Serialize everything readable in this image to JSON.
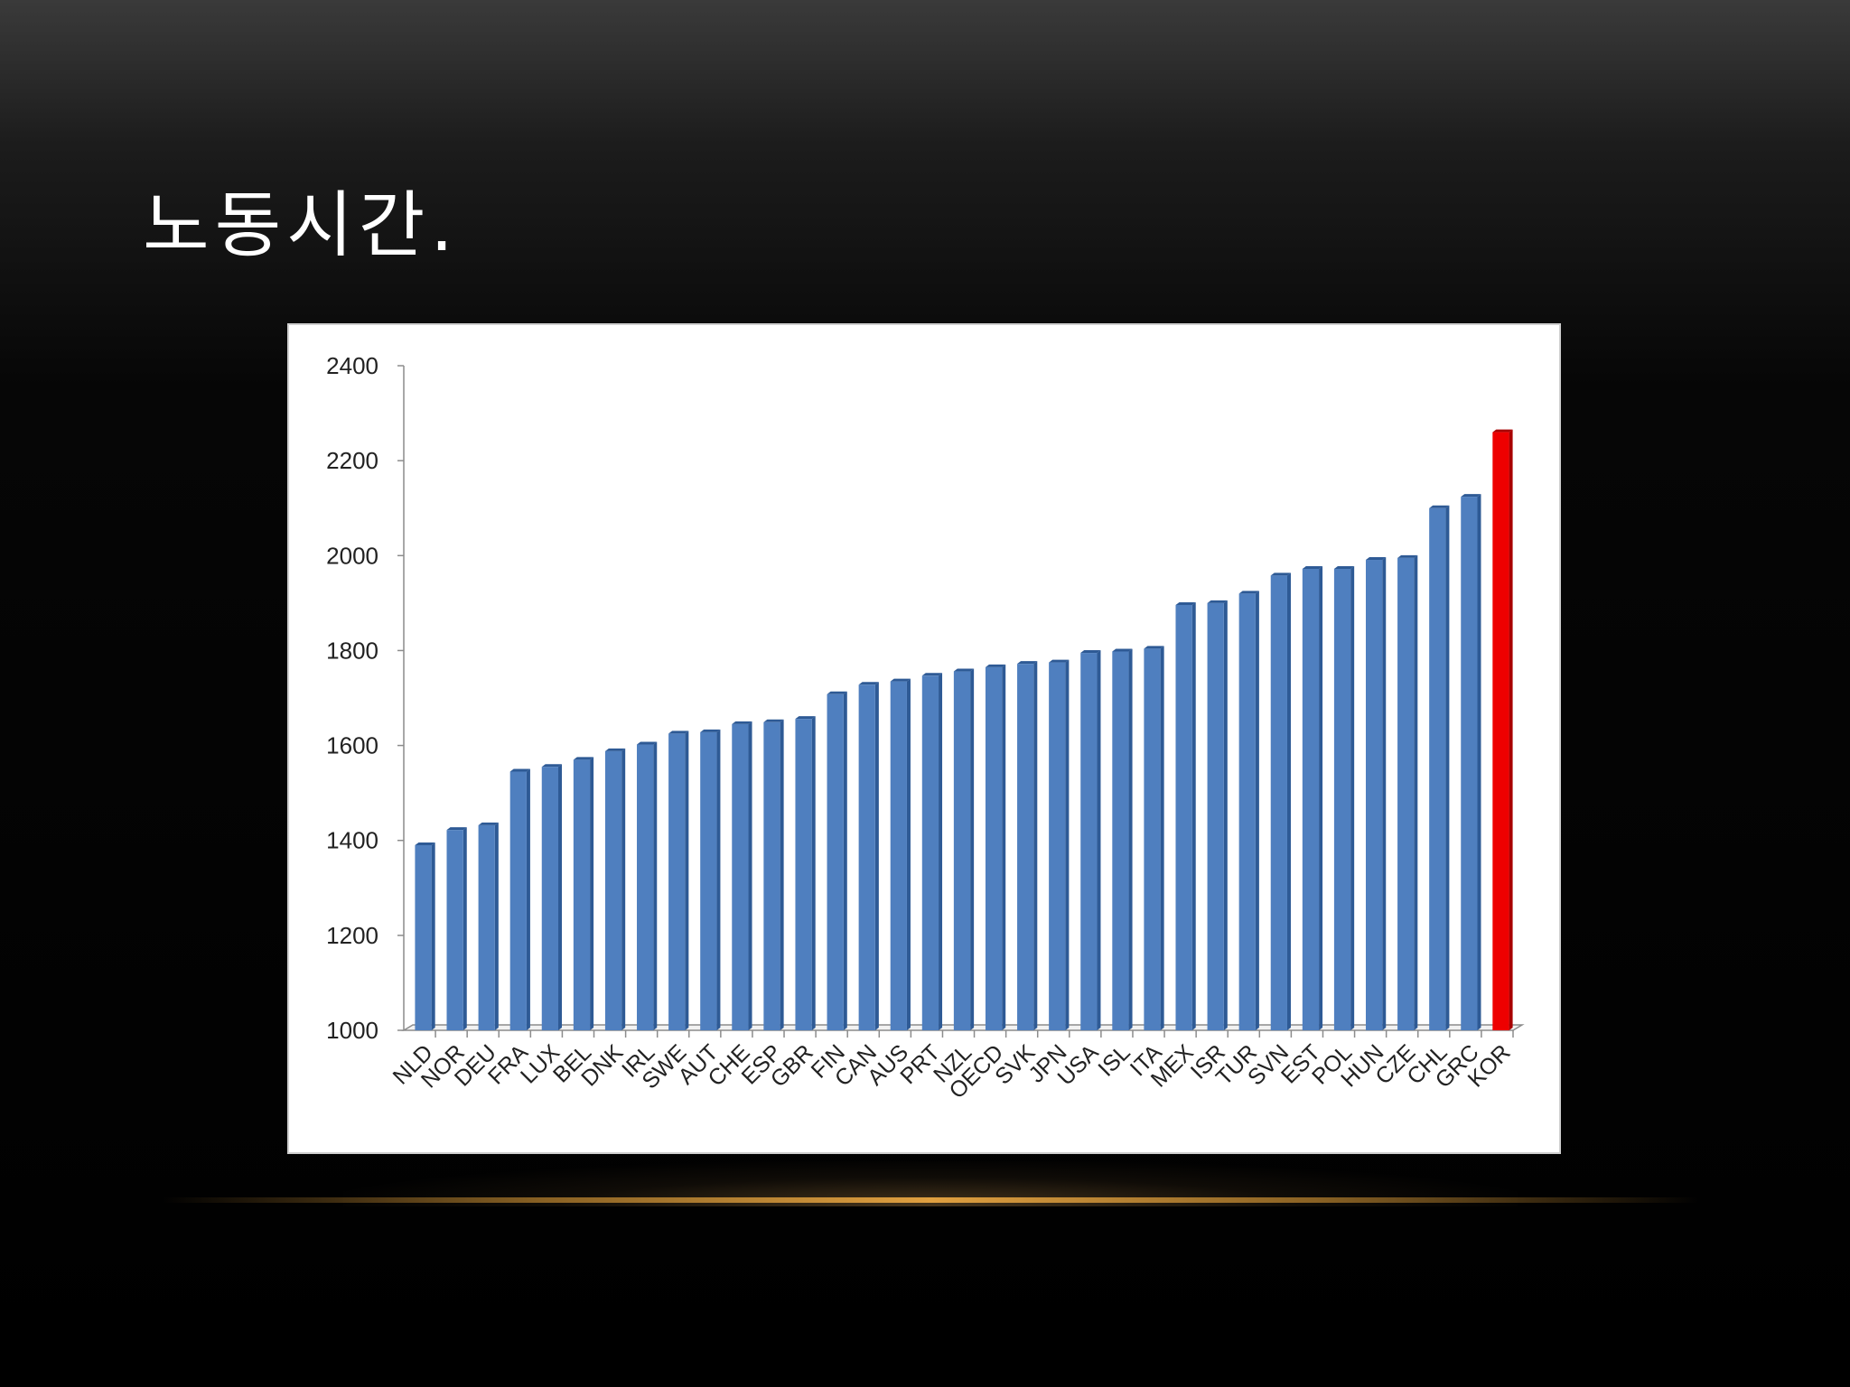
{
  "slide": {
    "title": "노동시간."
  },
  "colors": {
    "bar": "#4f7fbf",
    "bar_dark": "#2e5a95",
    "highlight": "#ee0000",
    "highlight_dark": "#a80000",
    "axis": "#8c8c8c",
    "text": "#222222"
  },
  "chart_data": {
    "type": "bar",
    "title": "",
    "xlabel": "",
    "ylabel": "",
    "ylim": [
      1000,
      2400
    ],
    "yticks": [
      1000,
      1200,
      1400,
      1600,
      1800,
      2000,
      2200,
      2400
    ],
    "gridlines": false,
    "highlight_category": "KOR",
    "categories": [
      "NLD",
      "NOR",
      "DEU",
      "FRA",
      "LUX",
      "BEL",
      "DNK",
      "IRL",
      "SWE",
      "AUT",
      "CHE",
      "ESP",
      "GBR",
      "FIN",
      "CAN",
      "AUS",
      "PRT",
      "NZL",
      "OECD",
      "SVK",
      "JPN",
      "USA",
      "ISL",
      "ITA",
      "MEX",
      "ISR",
      "TUR",
      "SVN",
      "EST",
      "POL",
      "HUN",
      "CZE",
      "CHL",
      "GRC",
      "KOR"
    ],
    "values": [
      1390,
      1422,
      1432,
      1545,
      1555,
      1570,
      1588,
      1602,
      1625,
      1628,
      1645,
      1649,
      1656,
      1708,
      1728,
      1735,
      1747,
      1756,
      1765,
      1772,
      1775,
      1795,
      1798,
      1804,
      1896,
      1900,
      1920,
      1958,
      1972,
      1972,
      1991,
      1995,
      2100,
      2124,
      2260
    ]
  }
}
